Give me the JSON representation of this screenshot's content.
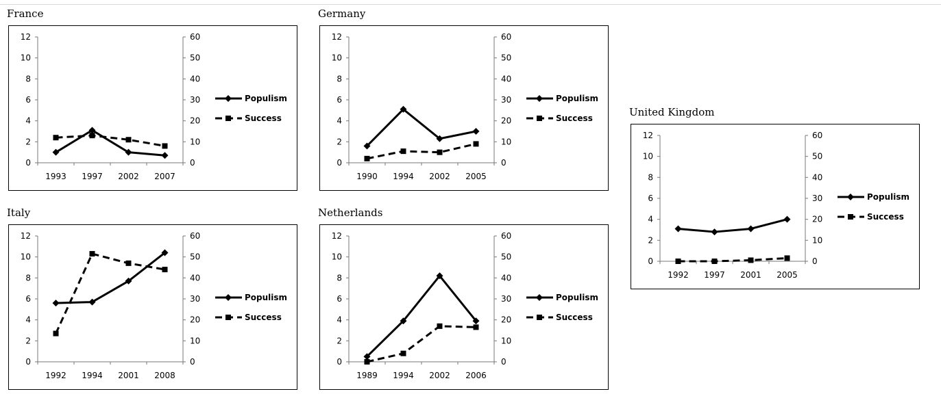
{
  "chart_data": [
    {
      "type": "line",
      "title": "France",
      "categories": [
        "1993",
        "1997",
        "2002",
        "2007"
      ],
      "y_left": {
        "min": 0,
        "max": 12,
        "ticks": [
          "0",
          "2",
          "4",
          "6",
          "8",
          "10",
          "12"
        ]
      },
      "y_right": {
        "min": 0,
        "max": 60,
        "ticks": [
          "0",
          "10",
          "20",
          "30",
          "40",
          "50",
          "60"
        ]
      },
      "series": [
        {
          "name": "Populism",
          "axis": "left",
          "style": "solid",
          "marker": "diamond",
          "values": [
            1.0,
            3.1,
            1.0,
            0.7
          ]
        },
        {
          "name": "Success",
          "axis": "right",
          "style": "dashed",
          "marker": "square",
          "values": [
            12,
            13,
            11,
            8
          ]
        }
      ],
      "legend": "right",
      "grid": false
    },
    {
      "type": "line",
      "title": "Germany",
      "categories": [
        "1990",
        "1994",
        "2002",
        "2005"
      ],
      "y_left": {
        "min": 0,
        "max": 12,
        "ticks": [
          "0",
          "2",
          "4",
          "6",
          "8",
          "10",
          "12"
        ]
      },
      "y_right": {
        "min": 0,
        "max": 60,
        "ticks": [
          "0",
          "10",
          "20",
          "30",
          "40",
          "50",
          "60"
        ]
      },
      "series": [
        {
          "name": "Populism",
          "axis": "left",
          "style": "solid",
          "marker": "diamond",
          "values": [
            1.6,
            5.1,
            2.3,
            3.0
          ]
        },
        {
          "name": "Success",
          "axis": "right",
          "style": "dashed",
          "marker": "square",
          "values": [
            2,
            5.5,
            5,
            9
          ]
        }
      ],
      "legend": "right",
      "grid": false
    },
    {
      "type": "line",
      "title": "United Kingdom",
      "categories": [
        "1992",
        "1997",
        "2001",
        "2005"
      ],
      "y_left": {
        "min": 0,
        "max": 12,
        "ticks": [
          "0",
          "2",
          "4",
          "6",
          "8",
          "10",
          "12"
        ]
      },
      "y_right": {
        "min": 0,
        "max": 60,
        "ticks": [
          "0",
          "10",
          "20",
          "30",
          "40",
          "50",
          "60"
        ]
      },
      "series": [
        {
          "name": "Populism",
          "axis": "left",
          "style": "solid",
          "marker": "diamond",
          "values": [
            3.1,
            2.8,
            3.1,
            4.0
          ]
        },
        {
          "name": "Success",
          "axis": "right",
          "style": "dashed",
          "marker": "square",
          "values": [
            0,
            0,
            0.5,
            1.5
          ]
        }
      ],
      "legend": "right",
      "grid": false
    },
    {
      "type": "line",
      "title": "Italy",
      "categories": [
        "1992",
        "1994",
        "2001",
        "2008"
      ],
      "y_left": {
        "min": 0,
        "max": 12,
        "ticks": [
          "0",
          "2",
          "4",
          "6",
          "8",
          "10",
          "12"
        ]
      },
      "y_right": {
        "min": 0,
        "max": 60,
        "ticks": [
          "0",
          "10",
          "20",
          "30",
          "40",
          "50",
          "60"
        ]
      },
      "series": [
        {
          "name": "Populism",
          "axis": "left",
          "style": "solid",
          "marker": "diamond",
          "values": [
            5.6,
            5.7,
            7.7,
            10.4
          ]
        },
        {
          "name": "Success",
          "axis": "right",
          "style": "dashed",
          "marker": "square",
          "values": [
            13.5,
            51.5,
            47,
            44
          ]
        }
      ],
      "legend": "right",
      "grid": false
    },
    {
      "type": "line",
      "title": "Netherlands",
      "categories": [
        "1989",
        "1994",
        "2002",
        "2006"
      ],
      "y_left": {
        "min": 0,
        "max": 12,
        "ticks": [
          "0",
          "2",
          "4",
          "6",
          "8",
          "10",
          "12"
        ]
      },
      "y_right": {
        "min": 0,
        "max": 60,
        "ticks": [
          "0",
          "10",
          "20",
          "30",
          "40",
          "50",
          "60"
        ]
      },
      "series": [
        {
          "name": "Populism",
          "axis": "left",
          "style": "solid",
          "marker": "diamond",
          "values": [
            0.5,
            3.9,
            8.2,
            3.9
          ]
        },
        {
          "name": "Success",
          "axis": "right",
          "style": "dashed",
          "marker": "square",
          "values": [
            0,
            4,
            17,
            16.5
          ]
        }
      ],
      "legend": "right",
      "grid": false
    }
  ]
}
